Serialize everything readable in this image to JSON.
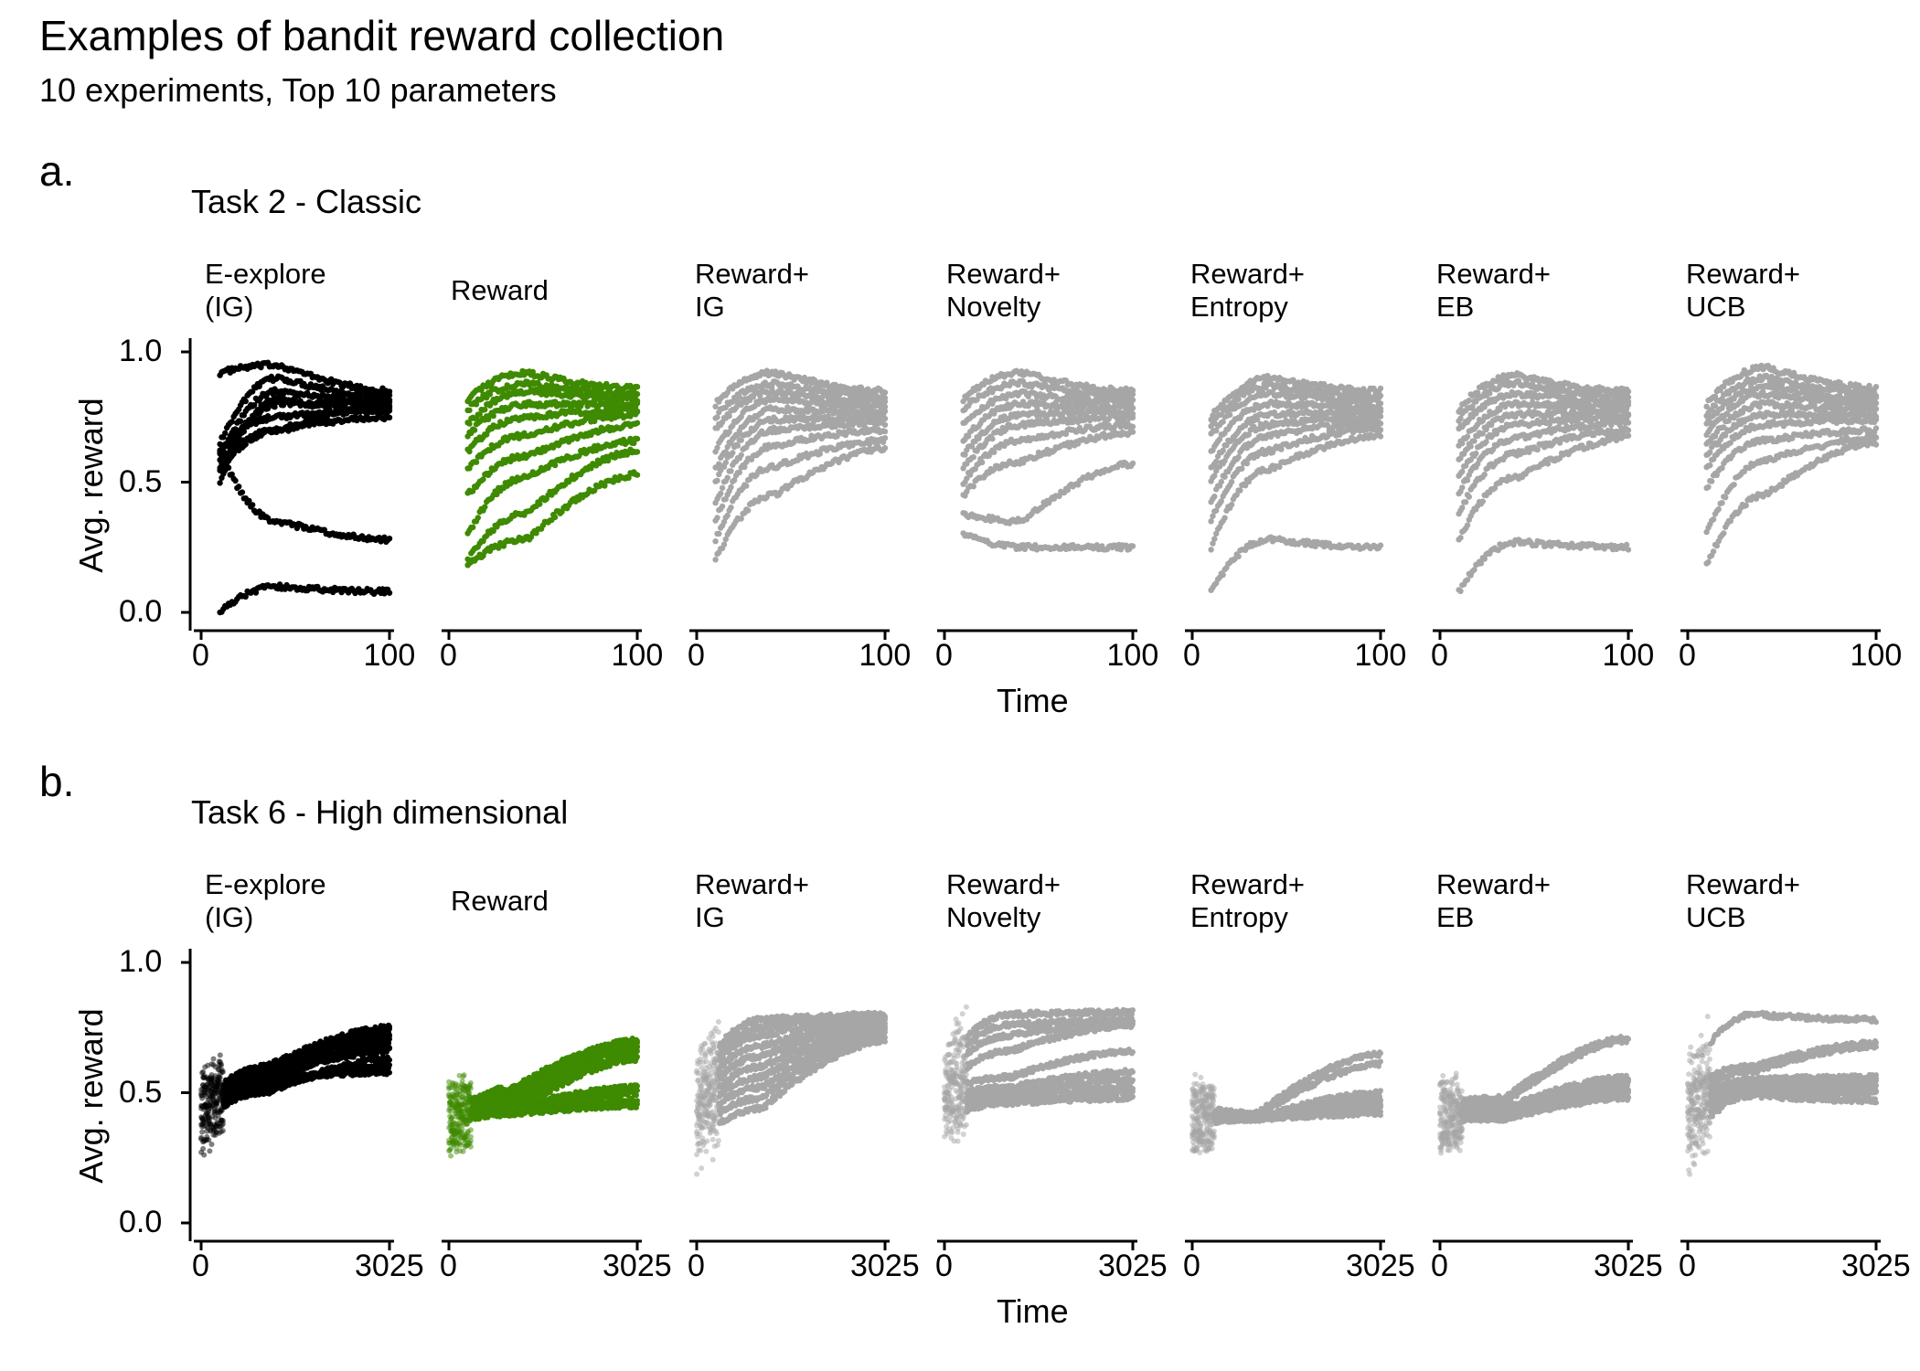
{
  "title": "Examples of bandit reward collection",
  "subtitle": "10 experiments, Top 10 parameters",
  "colors": {
    "ig": "#000000",
    "reward": "#3e8a00",
    "others": "#a6a6a6"
  },
  "chart_data": [
    {
      "type": "scatter",
      "panel_label": "a.",
      "task_title": "Task 2 - Classic",
      "xlabel": "Time",
      "ylabel": "Avg. reward",
      "xlim": [
        0,
        100
      ],
      "ylim": [
        0,
        1
      ],
      "x_ticks": [
        "0",
        "100"
      ],
      "y_ticks": [
        "0.0",
        "0.5",
        "1.0"
      ],
      "facets": [
        {
          "label": "E-explore\n(IG)",
          "color": "ig",
          "n_points": 100,
          "finals": [
            0.85,
            0.83,
            0.81,
            0.8,
            0.79,
            0.78,
            0.77,
            0.75,
            0.28,
            0.08
          ],
          "starts": [
            0.92,
            0.65,
            0.6,
            0.55,
            0.58,
            0.62,
            0.5,
            0.55,
            0.62,
            0.0
          ],
          "mid": [
            0.95,
            0.9,
            0.85,
            0.8,
            0.7,
            0.75,
            0.82,
            0.7,
            0.35,
            0.1
          ]
        },
        {
          "label": "Reward",
          "color": "reward",
          "n_points": 100,
          "finals": [
            0.86,
            0.84,
            0.82,
            0.8,
            0.78,
            0.76,
            0.72,
            0.66,
            0.62,
            0.53
          ],
          "starts": [
            0.82,
            0.78,
            0.72,
            0.68,
            0.62,
            0.55,
            0.45,
            0.3,
            0.2,
            0.18
          ],
          "mid": [
            0.92,
            0.88,
            0.85,
            0.8,
            0.75,
            0.68,
            0.6,
            0.52,
            0.38,
            0.28
          ]
        },
        {
          "label": "Reward+\nIG",
          "color": "others",
          "n_points": 100,
          "finals": [
            0.85,
            0.83,
            0.81,
            0.79,
            0.77,
            0.75,
            0.73,
            0.7,
            0.66,
            0.63
          ],
          "starts": [
            0.8,
            0.75,
            0.7,
            0.62,
            0.55,
            0.5,
            0.42,
            0.35,
            0.28,
            0.2
          ],
          "mid": [
            0.92,
            0.88,
            0.85,
            0.82,
            0.78,
            0.74,
            0.7,
            0.64,
            0.56,
            0.45
          ]
        },
        {
          "label": "Reward+\nNovelty",
          "color": "others",
          "n_points": 100,
          "finals": [
            0.85,
            0.83,
            0.81,
            0.79,
            0.77,
            0.75,
            0.72,
            0.69,
            0.57,
            0.25
          ],
          "starts": [
            0.82,
            0.78,
            0.72,
            0.66,
            0.6,
            0.55,
            0.5,
            0.45,
            0.38,
            0.3
          ],
          "mid": [
            0.92,
            0.88,
            0.84,
            0.8,
            0.76,
            0.72,
            0.66,
            0.58,
            0.35,
            0.25
          ]
        },
        {
          "label": "Reward+\nEntropy",
          "color": "others",
          "n_points": 100,
          "finals": [
            0.85,
            0.83,
            0.81,
            0.79,
            0.77,
            0.75,
            0.73,
            0.71,
            0.68,
            0.25
          ],
          "starts": [
            0.75,
            0.72,
            0.68,
            0.62,
            0.55,
            0.5,
            0.42,
            0.35,
            0.25,
            0.08
          ],
          "mid": [
            0.9,
            0.87,
            0.84,
            0.8,
            0.76,
            0.72,
            0.68,
            0.62,
            0.55,
            0.28
          ]
        },
        {
          "label": "Reward+\nEB",
          "color": "others",
          "n_points": 100,
          "finals": [
            0.85,
            0.83,
            0.81,
            0.79,
            0.77,
            0.75,
            0.73,
            0.7,
            0.67,
            0.25
          ],
          "starts": [
            0.78,
            0.74,
            0.7,
            0.64,
            0.58,
            0.52,
            0.46,
            0.38,
            0.28,
            0.08
          ],
          "mid": [
            0.91,
            0.88,
            0.84,
            0.8,
            0.76,
            0.72,
            0.67,
            0.61,
            0.52,
            0.27
          ]
        },
        {
          "label": "Reward+\nUCB",
          "color": "others",
          "n_points": 100,
          "finals": [
            0.86,
            0.84,
            0.82,
            0.8,
            0.78,
            0.76,
            0.74,
            0.7,
            0.67,
            0.65
          ],
          "starts": [
            0.8,
            0.76,
            0.72,
            0.68,
            0.64,
            0.6,
            0.55,
            0.48,
            0.3,
            0.18
          ],
          "mid": [
            0.94,
            0.9,
            0.87,
            0.84,
            0.8,
            0.76,
            0.72,
            0.66,
            0.58,
            0.45
          ]
        }
      ]
    },
    {
      "type": "scatter",
      "panel_label": "b.",
      "task_title": "Task 6 - High dimensional",
      "xlabel": "Time",
      "ylabel": "Avg. reward",
      "xlim": [
        0,
        3025
      ],
      "ylim": [
        0,
        1
      ],
      "x_ticks": [
        "0",
        "3025"
      ],
      "y_ticks": [
        "0.0",
        "0.5",
        "1.0"
      ],
      "facets": [
        {
          "label": "E-explore\n(IG)",
          "color": "ig",
          "n_points": 200,
          "finals": [
            0.75,
            0.74,
            0.73,
            0.72,
            0.7,
            0.68,
            0.66,
            0.63,
            0.6,
            0.58
          ],
          "starts": [
            0.45,
            0.42,
            0.4,
            0.38,
            0.35,
            0.45,
            0.48,
            0.4,
            0.42,
            0.44
          ],
          "mid": [
            0.6,
            0.58,
            0.56,
            0.55,
            0.52,
            0.54,
            0.56,
            0.5,
            0.52,
            0.55
          ]
        },
        {
          "label": "Reward",
          "color": "reward",
          "n_points": 200,
          "finals": [
            0.7,
            0.69,
            0.68,
            0.67,
            0.65,
            0.63,
            0.52,
            0.5,
            0.47,
            0.45
          ],
          "starts": [
            0.4,
            0.42,
            0.38,
            0.36,
            0.4,
            0.42,
            0.4,
            0.38,
            0.42,
            0.4
          ],
          "mid": [
            0.52,
            0.5,
            0.48,
            0.46,
            0.44,
            0.42,
            0.44,
            0.42,
            0.43,
            0.42
          ]
        },
        {
          "label": "Reward+\nIG",
          "color": "others",
          "n_points": 200,
          "finals": [
            0.8,
            0.79,
            0.78,
            0.77,
            0.76,
            0.75,
            0.74,
            0.73,
            0.72,
            0.7
          ],
          "starts": [
            0.55,
            0.52,
            0.5,
            0.48,
            0.45,
            0.42,
            0.4,
            0.38,
            0.35,
            0.3
          ],
          "mid": [
            0.78,
            0.75,
            0.72,
            0.68,
            0.64,
            0.6,
            0.56,
            0.52,
            0.48,
            0.44
          ]
        },
        {
          "label": "Reward+\nNovelty",
          "color": "others",
          "n_points": 200,
          "finals": [
            0.81,
            0.78,
            0.77,
            0.76,
            0.66,
            0.58,
            0.55,
            0.52,
            0.5,
            0.48
          ],
          "starts": [
            0.6,
            0.58,
            0.56,
            0.52,
            0.5,
            0.48,
            0.46,
            0.44,
            0.42,
            0.4
          ],
          "mid": [
            0.8,
            0.76,
            0.72,
            0.66,
            0.56,
            0.52,
            0.5,
            0.48,
            0.47,
            0.46
          ]
        },
        {
          "label": "Reward+\nEntropy",
          "color": "others",
          "n_points": 200,
          "finals": [
            0.65,
            0.61,
            0.5,
            0.48,
            0.47,
            0.46,
            0.45,
            0.44,
            0.43,
            0.42
          ],
          "starts": [
            0.45,
            0.42,
            0.4,
            0.38,
            0.4,
            0.42,
            0.38,
            0.4,
            0.42,
            0.4
          ],
          "mid": [
            0.42,
            0.41,
            0.4,
            0.4,
            0.4,
            0.4,
            0.4,
            0.4,
            0.4,
            0.4
          ]
        },
        {
          "label": "Reward+\nEB",
          "color": "others",
          "n_points": 200,
          "finals": [
            0.71,
            0.7,
            0.56,
            0.55,
            0.54,
            0.52,
            0.51,
            0.5,
            0.49,
            0.48
          ],
          "starts": [
            0.45,
            0.42,
            0.4,
            0.38,
            0.4,
            0.42,
            0.38,
            0.4,
            0.42,
            0.4
          ],
          "mid": [
            0.48,
            0.46,
            0.44,
            0.43,
            0.42,
            0.41,
            0.41,
            0.4,
            0.4,
            0.4
          ]
        },
        {
          "label": "Reward+\nUCB",
          "color": "others",
          "n_points": 200,
          "finals": [
            0.78,
            0.69,
            0.68,
            0.56,
            0.55,
            0.54,
            0.52,
            0.51,
            0.5,
            0.47
          ],
          "starts": [
            0.55,
            0.52,
            0.5,
            0.48,
            0.45,
            0.42,
            0.4,
            0.38,
            0.35,
            0.3
          ],
          "mid": [
            0.8,
            0.6,
            0.58,
            0.55,
            0.54,
            0.53,
            0.52,
            0.51,
            0.5,
            0.49
          ]
        }
      ]
    }
  ]
}
